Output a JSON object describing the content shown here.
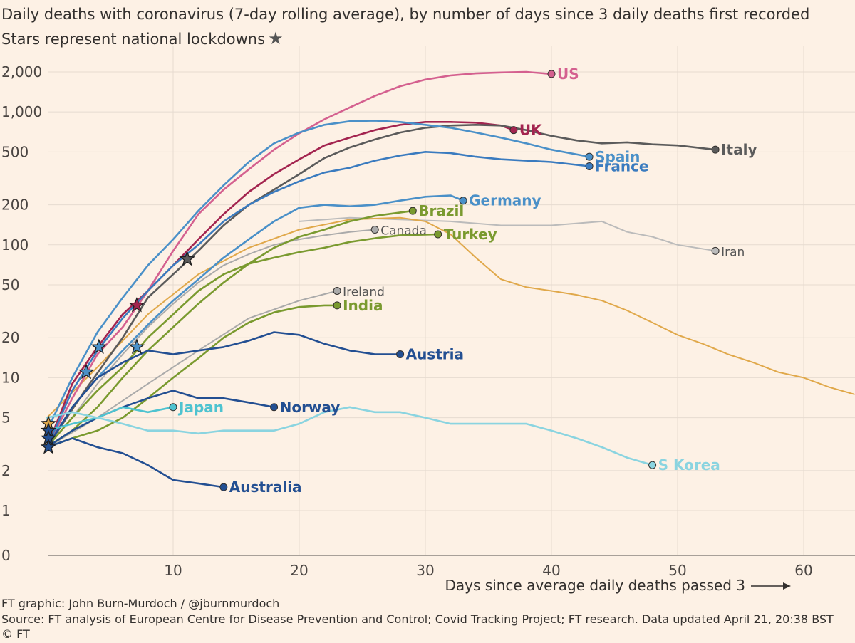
{
  "title": "Daily deaths with coronavirus (7-day rolling average), by number of days since 3 daily deaths first recorded",
  "subtitle": "Stars represent national lockdowns",
  "credits": {
    "line1": "FT graphic: John Burn-Murdoch / @jburnmurdoch",
    "line2": "Source: FT analysis of European Centre for Disease Prevention and Control; Covid Tracking Project; FT research. Data updated April 21, 20:38 BST",
    "line3": "© FT"
  },
  "chart_data": {
    "type": "line",
    "title": "Daily deaths with coronavirus (7-day rolling average), by number of days since 3 daily deaths first recorded",
    "subtitle": "Stars represent national lockdowns",
    "xlabel": "Days since average daily deaths passed 3",
    "ylabel": "",
    "y_scale": "log (0 shown at bottom)",
    "xlim": [
      0,
      64
    ],
    "ylim": [
      0,
      2600
    ],
    "x_ticks": [
      10,
      20,
      30,
      40,
      50,
      60
    ],
    "y_ticks": [
      0,
      1,
      2,
      5,
      10,
      20,
      50,
      100,
      200,
      500,
      1000,
      2000
    ],
    "y_tick_labels": [
      "0",
      "1",
      "2",
      "5",
      "10",
      "20",
      "50",
      "100",
      "200",
      "500",
      "1,000",
      "2,000"
    ],
    "grid": true,
    "series": [
      {
        "name": "US",
        "color": "#d4608f",
        "label_style": "bold",
        "x": [
          0,
          2,
          4,
          6,
          8,
          10,
          12,
          14,
          16,
          18,
          20,
          22,
          24,
          26,
          28,
          30,
          32,
          34,
          36,
          38,
          40
        ],
        "y": [
          3,
          7,
          15,
          24,
          45,
          90,
          170,
          260,
          370,
          520,
          690,
          880,
          1080,
          1320,
          1560,
          1750,
          1880,
          1950,
          1980,
          2000,
          1930
        ]
      },
      {
        "name": "UK",
        "color": "#a3244f",
        "label_style": "bold",
        "x": [
          0,
          2,
          4,
          6,
          8,
          10,
          12,
          14,
          16,
          18,
          20,
          22,
          24,
          26,
          28,
          30,
          32,
          34,
          36,
          37
        ],
        "y": [
          3,
          9,
          17,
          30,
          45,
          70,
          110,
          170,
          250,
          340,
          440,
          560,
          640,
          730,
          800,
          840,
          840,
          830,
          790,
          730
        ]
      },
      {
        "name": "Italy",
        "color": "#5b5b5b",
        "label_style": "bold",
        "x": [
          0,
          3,
          6,
          8,
          10,
          12,
          14,
          16,
          18,
          20,
          22,
          24,
          26,
          28,
          30,
          32,
          34,
          36,
          38,
          40,
          42,
          44,
          46,
          48,
          50,
          53
        ],
        "y": [
          3,
          8,
          20,
          40,
          60,
          90,
          140,
          200,
          260,
          340,
          450,
          540,
          620,
          700,
          760,
          790,
          800,
          790,
          730,
          660,
          610,
          580,
          590,
          570,
          560,
          520
        ]
      },
      {
        "name": "Spain",
        "color": "#4a90c8",
        "label_style": "bold",
        "x": [
          0,
          2,
          4,
          6,
          8,
          10,
          12,
          14,
          16,
          18,
          20,
          22,
          24,
          26,
          28,
          30,
          32,
          34,
          36,
          38,
          40,
          43
        ],
        "y": [
          4,
          10,
          22,
          40,
          70,
          110,
          180,
          280,
          420,
          580,
          700,
          800,
          850,
          860,
          840,
          800,
          760,
          700,
          640,
          580,
          520,
          460
        ]
      },
      {
        "name": "France",
        "color": "#3a7bbf",
        "label_style": "bold",
        "x": [
          0,
          2,
          4,
          6,
          8,
          10,
          12,
          14,
          16,
          18,
          20,
          22,
          24,
          26,
          28,
          30,
          32,
          34,
          36,
          38,
          40,
          43
        ],
        "y": [
          3,
          8,
          16,
          28,
          45,
          70,
          100,
          150,
          200,
          250,
          300,
          350,
          380,
          430,
          470,
          500,
          490,
          460,
          440,
          430,
          420,
          390
        ]
      },
      {
        "name": "Germany",
        "color": "#4a90c8",
        "label_style": "bold",
        "x": [
          0,
          2,
          4,
          6,
          8,
          10,
          12,
          14,
          16,
          18,
          20,
          22,
          24,
          26,
          28,
          30,
          32,
          33
        ],
        "y": [
          3,
          6,
          10,
          16,
          25,
          38,
          55,
          80,
          110,
          150,
          190,
          200,
          195,
          200,
          215,
          230,
          235,
          215
        ]
      },
      {
        "name": "Brazil",
        "color": "#7a9a2f",
        "label_style": "bold",
        "x": [
          0,
          2,
          4,
          6,
          8,
          10,
          12,
          14,
          16,
          18,
          20,
          22,
          24,
          26,
          29
        ],
        "y": [
          3,
          4,
          6,
          10,
          16,
          24,
          36,
          52,
          72,
          95,
          115,
          130,
          150,
          165,
          180
        ]
      },
      {
        "name": "Turkey",
        "color": "#7a9a2f",
        "label_style": "bold",
        "x": [
          0,
          2,
          4,
          6,
          8,
          10,
          12,
          14,
          16,
          18,
          20,
          22,
          24,
          26,
          28,
          31
        ],
        "y": [
          3,
          5,
          8,
          12,
          20,
          30,
          45,
          60,
          72,
          80,
          88,
          95,
          105,
          112,
          118,
          120
        ]
      },
      {
        "name": "India",
        "color": "#7a9a2f",
        "label_style": "bold",
        "x": [
          0,
          2,
          4,
          6,
          8,
          10,
          12,
          14,
          16,
          18,
          20,
          22,
          23
        ],
        "y": [
          3,
          3.5,
          4,
          5,
          7,
          10,
          14,
          20,
          26,
          31,
          34,
          35,
          35
        ]
      },
      {
        "name": "Austria",
        "color": "#234f92",
        "label_style": "bold",
        "x": [
          0,
          2,
          4,
          6,
          8,
          10,
          12,
          14,
          16,
          18,
          20,
          22,
          24,
          26,
          28
        ],
        "y": [
          3,
          6,
          10,
          13,
          16,
          15,
          16,
          17,
          19,
          22,
          21,
          18,
          16,
          15,
          15
        ]
      },
      {
        "name": "Norway",
        "color": "#234f92",
        "label_style": "bold",
        "x": [
          0,
          2,
          4,
          6,
          8,
          10,
          12,
          14,
          16,
          18
        ],
        "y": [
          3,
          4,
          5,
          6,
          7,
          8,
          7,
          7,
          6.5,
          6
        ]
      },
      {
        "name": "Japan",
        "color": "#4ec3d0",
        "label_style": "bold",
        "x": [
          0,
          2,
          4,
          6,
          8,
          10
        ],
        "y": [
          4,
          4.5,
          5,
          6,
          5.5,
          6
        ]
      },
      {
        "name": "Australia",
        "color": "#234f92",
        "label_style": "bold",
        "x": [
          0,
          2,
          4,
          6,
          8,
          10,
          12,
          14
        ],
        "y": [
          3,
          3.5,
          3,
          2.7,
          2.2,
          1.7,
          1.6,
          1.5
        ]
      },
      {
        "name": "S Korea",
        "color": "#8ad4e0",
        "label_style": "bold",
        "x": [
          0,
          2,
          4,
          6,
          8,
          10,
          12,
          14,
          16,
          18,
          20,
          22,
          24,
          26,
          28,
          30,
          32,
          34,
          36,
          38,
          40,
          42,
          44,
          46,
          48
        ],
        "y": [
          5,
          5.5,
          5,
          4.5,
          4,
          4,
          3.8,
          4,
          4,
          4,
          4.5,
          5.5,
          6,
          5.5,
          5.5,
          5,
          4.5,
          4.5,
          4.5,
          4.5,
          4,
          3.5,
          3,
          2.5,
          2.2
        ]
      },
      {
        "name": "Canada",
        "color": "#aaaaaa",
        "label_style": "plain",
        "x": [
          0,
          2,
          4,
          6,
          8,
          10,
          12,
          14,
          16,
          18,
          20,
          22,
          24,
          26
        ],
        "y": [
          3,
          5,
          9,
          15,
          24,
          36,
          52,
          70,
          85,
          100,
          110,
          118,
          125,
          130
        ]
      },
      {
        "name": "Iran",
        "color": "#bbbbbb",
        "label_style": "plain",
        "x": [
          20,
          24,
          28,
          32,
          36,
          40,
          44,
          46,
          48,
          50,
          53
        ],
        "y": [
          150,
          160,
          155,
          150,
          140,
          140,
          150,
          125,
          115,
          100,
          90
        ]
      },
      {
        "name": "Ireland",
        "color": "#aaaaaa",
        "label_style": "plain",
        "x": [
          0,
          4,
          8,
          12,
          16,
          20,
          23
        ],
        "y": [
          3,
          5,
          9,
          16,
          28,
          38,
          45
        ]
      },
      {
        "name": "",
        "color": "#e0a84a",
        "label_style": "none",
        "x": [
          0,
          4,
          8,
          12,
          16,
          20,
          24,
          28,
          30,
          32,
          34,
          36,
          38,
          40,
          42,
          44,
          46,
          48,
          50,
          52,
          54,
          56,
          58,
          60,
          62,
          64
        ],
        "y": [
          5,
          12,
          30,
          60,
          95,
          130,
          155,
          160,
          150,
          120,
          80,
          55,
          48,
          45,
          42,
          38,
          32,
          26,
          21,
          18,
          15,
          13,
          11,
          10,
          8.5,
          7.5
        ]
      }
    ],
    "lockdown_stars": [
      {
        "x": 11,
        "y": 78,
        "color": "#5b5b5b"
      },
      {
        "x": 7,
        "y": 35,
        "color": "#a3244f"
      },
      {
        "x": 4,
        "y": 17,
        "color": "#4a90c8"
      },
      {
        "x": 7,
        "y": 17,
        "color": "#4a90c8"
      },
      {
        "x": 3,
        "y": 11,
        "color": "#4a90c8"
      },
      {
        "x": 0,
        "y": 4.5,
        "color": "#e0a84a"
      },
      {
        "x": 0,
        "y": 4,
        "color": "#234f92"
      },
      {
        "x": 0,
        "y": 3.5,
        "color": "#234f92"
      },
      {
        "x": 0,
        "y": 3,
        "color": "#234f92"
      }
    ]
  }
}
